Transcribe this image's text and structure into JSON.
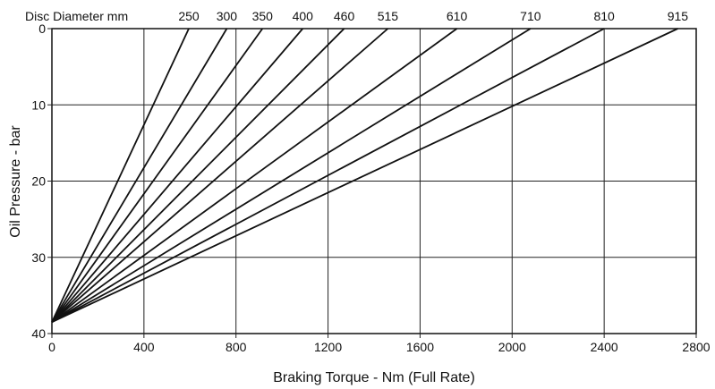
{
  "chart_data": {
    "type": "line",
    "xlabel": "Braking Torque - Nm (Full Rate)",
    "ylabel": "Oil Pressure - bar",
    "top_label": "Disc Diameter mm",
    "xlim": [
      0,
      2800
    ],
    "ylim": [
      0,
      40
    ],
    "y_inverted": true,
    "x_ticks": [
      "0",
      "400",
      "800",
      "1200",
      "1600",
      "2000",
      "2400",
      "2800"
    ],
    "y_ticks": [
      "0",
      "10",
      "20",
      "30",
      "40"
    ],
    "grid": true,
    "origin": {
      "x": 0,
      "y": 38.5
    },
    "series": [
      {
        "name": "250",
        "x": [
          0,
          595
        ],
        "y": [
          38.5,
          0
        ]
      },
      {
        "name": "300",
        "x": [
          0,
          760
        ],
        "y": [
          38.5,
          0
        ]
      },
      {
        "name": "350",
        "x": [
          0,
          915
        ],
        "y": [
          38.5,
          0
        ]
      },
      {
        "name": "400",
        "x": [
          0,
          1090
        ],
        "y": [
          38.5,
          0
        ]
      },
      {
        "name": "460",
        "x": [
          0,
          1270
        ],
        "y": [
          38.5,
          0
        ]
      },
      {
        "name": "515",
        "x": [
          0,
          1460
        ],
        "y": [
          38.5,
          0
        ]
      },
      {
        "name": "610",
        "x": [
          0,
          1760
        ],
        "y": [
          38.5,
          0
        ]
      },
      {
        "name": "710",
        "x": [
          0,
          2080
        ],
        "y": [
          38.5,
          0
        ]
      },
      {
        "name": "810",
        "x": [
          0,
          2400
        ],
        "y": [
          38.5,
          0
        ]
      },
      {
        "name": "915",
        "x": [
          0,
          2720
        ],
        "y": [
          38.5,
          0
        ]
      }
    ],
    "colors": {
      "line": "#111111",
      "grid": "#222222",
      "background": "#ffffff"
    }
  }
}
